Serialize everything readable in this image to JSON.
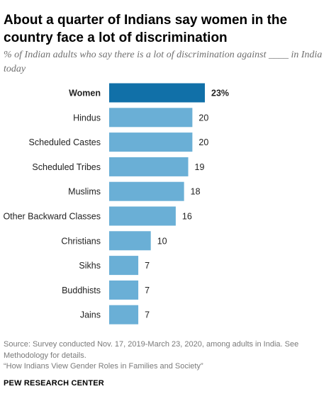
{
  "title": "About a quarter of Indians say women in the country face a lot of discrimination",
  "subtitle": "% of Indian adults who say there is a lot of discrimination against ____ in India today",
  "source": "Source: Survey conducted Nov. 17, 2019-March 23, 2020, among adults in India. See Methodology for details.",
  "note": "“How Indians View Gender Roles in Families and Society”",
  "brand": "PEW RESEARCH CENTER",
  "colors": {
    "highlight": "#1170a8",
    "bar": "#6aafd6",
    "label": "#222222"
  },
  "chart_data": {
    "type": "bar",
    "orientation": "horizontal",
    "categories": [
      "Women",
      "Hindus",
      "Scheduled Castes",
      "Scheduled Tribes",
      "Muslims",
      "Other Backward Classes",
      "Christians",
      "Sikhs",
      "Buddhists",
      "Jains"
    ],
    "values": [
      23,
      20,
      20,
      19,
      18,
      16,
      10,
      7,
      7,
      7
    ],
    "value_labels": [
      "23%",
      "20",
      "20",
      "19",
      "18",
      "16",
      "10",
      "7",
      "7",
      "7"
    ],
    "highlight_index": 0,
    "xlim": [
      0,
      23
    ],
    "grid": false,
    "legend": "none"
  }
}
